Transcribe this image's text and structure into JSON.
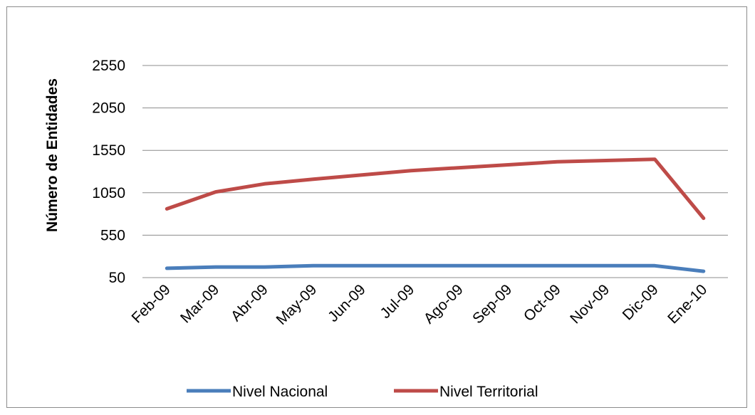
{
  "chart_data": {
    "type": "line",
    "title": "",
    "xlabel": "",
    "ylabel": "Número de Entidades",
    "categories": [
      "Feb-09",
      "Mar-09",
      "Abr-09",
      "May-09",
      "Jun-09",
      "Jul-09",
      "Ago-09",
      "Sep-09",
      "Oct-09",
      "Nov-09",
      "Dic-09",
      "Ene-10"
    ],
    "y_ticks": [
      "50",
      "550",
      "1050",
      "1550",
      "2050",
      "2550"
    ],
    "ylim": [
      50,
      2550
    ],
    "grid": true,
    "legend_position": "bottom",
    "series": [
      {
        "name": "Nivel Nacional",
        "color": "#4a7ebb",
        "values": [
          160,
          175,
          175,
          190,
          190,
          190,
          190,
          190,
          190,
          190,
          190,
          125
        ]
      },
      {
        "name": "Nivel Territorial",
        "color": "#be4b48",
        "values": [
          860,
          1060,
          1155,
          1210,
          1260,
          1310,
          1345,
          1380,
          1415,
          1430,
          1445,
          750
        ]
      }
    ]
  }
}
